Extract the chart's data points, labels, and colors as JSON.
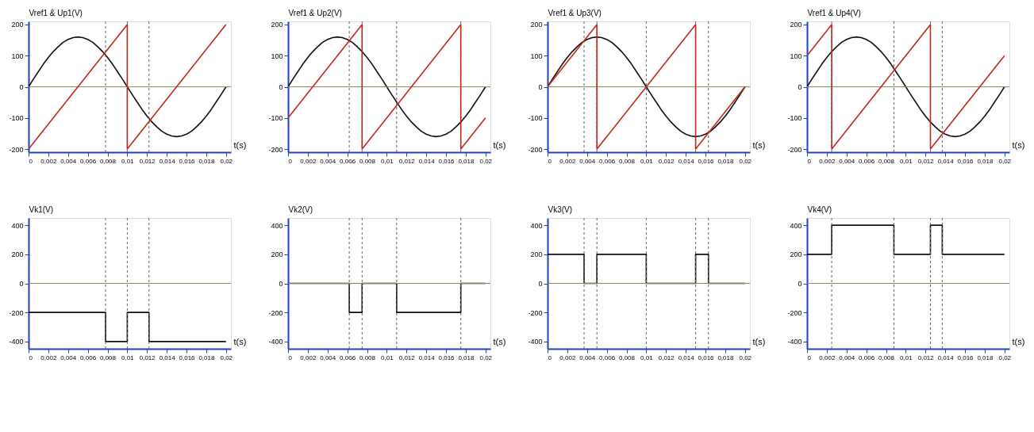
{
  "chart_data": [
    {
      "type": "line",
      "ylabel": "Vref1 & Up1(V)",
      "xlabel": "t(s)",
      "xlim": [
        0,
        0.0205
      ],
      "ylim": [
        -210,
        210
      ],
      "xticks": [
        0,
        {
          "value": 0.002,
          "label": "0,002"
        },
        {
          "value": 0.004,
          "label": "0,004"
        },
        {
          "value": 0.006,
          "label": "0,006"
        },
        {
          "value": 0.008,
          "label": "0,008"
        },
        {
          "value": 0.01,
          "label": "0,01"
        },
        {
          "value": 0.012,
          "label": "0,012"
        },
        {
          "value": 0.014,
          "label": "0,014"
        },
        {
          "value": 0.016,
          "label": "0,016"
        },
        {
          "value": 0.018,
          "label": "0,018"
        },
        {
          "value": 0.02,
          "label": "0,02"
        }
      ],
      "yticks": [
        -200,
        -100,
        0,
        100,
        200
      ],
      "grid": false,
      "x": [
        0,
        0.0005,
        0.001,
        0.0015,
        0.002,
        0.0025,
        0.003,
        0.0035,
        0.004,
        0.0045,
        0.005,
        0.0055,
        0.006,
        0.0065,
        0.007,
        0.0075,
        0.008,
        0.0085,
        0.009,
        0.0095,
        0.01,
        0.0105,
        0.011,
        0.0115,
        0.012,
        0.0125,
        0.013,
        0.0135,
        0.014,
        0.0145,
        0.015,
        0.0155,
        0.016,
        0.0165,
        0.017,
        0.0175,
        0.018,
        0.0185,
        0.019,
        0.0195,
        0.02
      ],
      "series": [
        {
          "color": "#101010",
          "values": [
            0,
            25,
            49,
            73,
            94,
            113,
            129,
            143,
            152,
            158,
            160,
            158,
            152,
            143,
            129,
            113,
            94,
            73,
            49,
            25,
            0,
            -25,
            -49,
            -73,
            -94,
            -113,
            -129,
            -143,
            -152,
            -158,
            -160,
            -158,
            -152,
            -143,
            -129,
            -113,
            -94,
            -73,
            -49,
            -25,
            0
          ]
        },
        {
          "color": "#c0281e",
          "x": [
            0,
            0.01,
            0.01,
            0.02
          ],
          "values": [
            -200,
            200,
            -200,
            200
          ]
        }
      ],
      "ref_lines": [
        {
          "axis": "y",
          "value": 0,
          "color": "#8c8c50",
          "line_style": "solid"
        },
        {
          "axis": "x",
          "value": 0.0078,
          "color": "#606060",
          "line_style": "dashed"
        },
        {
          "axis": "x",
          "value": 0.01,
          "color": "#606060",
          "line_style": "dashed"
        },
        {
          "axis": "x",
          "value": 0.0122,
          "color": "#606060",
          "line_style": "dashed"
        }
      ]
    },
    {
      "type": "line",
      "ylabel": "Vref1 & Up2(V)",
      "xlabel": "t(s)",
      "xlim": [
        0,
        0.0205
      ],
      "ylim": [
        -210,
        210
      ],
      "xticks": [
        0,
        {
          "value": 0.002,
          "label": "0,002"
        },
        {
          "value": 0.004,
          "label": "0,004"
        },
        {
          "value": 0.006,
          "label": "0,006"
        },
        {
          "value": 0.008,
          "label": "0,008"
        },
        {
          "value": 0.01,
          "label": "0,01"
        },
        {
          "value": 0.012,
          "label": "0,012"
        },
        {
          "value": 0.014,
          "label": "0,014"
        },
        {
          "value": 0.016,
          "label": "0,016"
        },
        {
          "value": 0.018,
          "label": "0,018"
        },
        {
          "value": 0.02,
          "label": "0,02"
        }
      ],
      "yticks": [
        -200,
        -100,
        0,
        100,
        200
      ],
      "grid": false,
      "x": [
        0,
        0.0005,
        0.001,
        0.0015,
        0.002,
        0.0025,
        0.003,
        0.0035,
        0.004,
        0.0045,
        0.005,
        0.0055,
        0.006,
        0.0065,
        0.007,
        0.0075,
        0.008,
        0.0085,
        0.009,
        0.0095,
        0.01,
        0.0105,
        0.011,
        0.0115,
        0.012,
        0.0125,
        0.013,
        0.0135,
        0.014,
        0.0145,
        0.015,
        0.0155,
        0.016,
        0.0165,
        0.017,
        0.0175,
        0.018,
        0.0185,
        0.019,
        0.0195,
        0.02
      ],
      "series": [
        {
          "color": "#101010",
          "values": [
            0,
            25,
            49,
            73,
            94,
            113,
            129,
            143,
            152,
            158,
            160,
            158,
            152,
            143,
            129,
            113,
            94,
            73,
            49,
            25,
            0,
            -25,
            -49,
            -73,
            -94,
            -113,
            -129,
            -143,
            -152,
            -158,
            -160,
            -158,
            -152,
            -143,
            -129,
            -113,
            -94,
            -73,
            -49,
            -25,
            0
          ]
        },
        {
          "color": "#c0281e",
          "x": [
            0,
            0.0075,
            0.0075,
            0.0175,
            0.0175,
            0.02
          ],
          "values": [
            -100,
            200,
            -200,
            200,
            -200,
            -100
          ]
        }
      ],
      "ref_lines": [
        {
          "axis": "y",
          "value": 0,
          "color": "#8c8c50",
          "line_style": "solid"
        },
        {
          "axis": "x",
          "value": 0.0062,
          "color": "#606060",
          "line_style": "dashed"
        },
        {
          "axis": "x",
          "value": 0.0075,
          "color": "#606060",
          "line_style": "dashed"
        },
        {
          "axis": "x",
          "value": 0.011,
          "color": "#606060",
          "line_style": "dashed"
        },
        {
          "axis": "x",
          "value": 0.0175,
          "color": "#606060",
          "line_style": "dashed"
        }
      ]
    },
    {
      "type": "line",
      "ylabel": "Vref1 & Up3(V)",
      "xlabel": "t(s)",
      "xlim": [
        0,
        0.0205
      ],
      "ylim": [
        -210,
        210
      ],
      "xticks": [
        0,
        {
          "value": 0.002,
          "label": "0,002"
        },
        {
          "value": 0.004,
          "label": "0,004"
        },
        {
          "value": 0.006,
          "label": "0,006"
        },
        {
          "value": 0.008,
          "label": "0,008"
        },
        {
          "value": 0.01,
          "label": "0,01"
        },
        {
          "value": 0.012,
          "label": "0,012"
        },
        {
          "value": 0.014,
          "label": "0,014"
        },
        {
          "value": 0.016,
          "label": "0,016"
        },
        {
          "value": 0.018,
          "label": "0,018"
        },
        {
          "value": 0.02,
          "label": "0,02"
        }
      ],
      "yticks": [
        -200,
        -100,
        0,
        100,
        200
      ],
      "grid": false,
      "x": [
        0,
        0.0005,
        0.001,
        0.0015,
        0.002,
        0.0025,
        0.003,
        0.0035,
        0.004,
        0.0045,
        0.005,
        0.0055,
        0.006,
        0.0065,
        0.007,
        0.0075,
        0.008,
        0.0085,
        0.009,
        0.0095,
        0.01,
        0.0105,
        0.011,
        0.0115,
        0.012,
        0.0125,
        0.013,
        0.0135,
        0.014,
        0.0145,
        0.015,
        0.0155,
        0.016,
        0.0165,
        0.017,
        0.0175,
        0.018,
        0.0185,
        0.019,
        0.0195,
        0.02
      ],
      "series": [
        {
          "color": "#101010",
          "values": [
            0,
            25,
            49,
            73,
            94,
            113,
            129,
            143,
            152,
            158,
            160,
            158,
            152,
            143,
            129,
            113,
            94,
            73,
            49,
            25,
            0,
            -25,
            -49,
            -73,
            -94,
            -113,
            -129,
            -143,
            -152,
            -158,
            -160,
            -158,
            -152,
            -143,
            -129,
            -113,
            -94,
            -73,
            -49,
            -25,
            0
          ]
        },
        {
          "color": "#c0281e",
          "x": [
            0,
            0.005,
            0.005,
            0.015,
            0.015,
            0.02
          ],
          "values": [
            0,
            200,
            -200,
            200,
            -200,
            0
          ]
        }
      ],
      "ref_lines": [
        {
          "axis": "y",
          "value": 0,
          "color": "#8c8c50",
          "line_style": "solid"
        },
        {
          "axis": "x",
          "value": 0.0037,
          "color": "#606060",
          "line_style": "dashed"
        },
        {
          "axis": "x",
          "value": 0.005,
          "color": "#606060",
          "line_style": "dashed"
        },
        {
          "axis": "x",
          "value": 0.01,
          "color": "#606060",
          "line_style": "dashed"
        },
        {
          "axis": "x",
          "value": 0.015,
          "color": "#606060",
          "line_style": "dashed"
        },
        {
          "axis": "x",
          "value": 0.0163,
          "color": "#606060",
          "line_style": "dashed"
        }
      ]
    },
    {
      "type": "line",
      "ylabel": "Vref1 & Up4(V)",
      "xlabel": "t(s)",
      "xlim": [
        0,
        0.0205
      ],
      "ylim": [
        -210,
        210
      ],
      "xticks": [
        0,
        {
          "value": 0.002,
          "label": "0,002"
        },
        {
          "value": 0.004,
          "label": "0,004"
        },
        {
          "value": 0.006,
          "label": "0,006"
        },
        {
          "value": 0.008,
          "label": "0,008"
        },
        {
          "value": 0.01,
          "label": "0,01"
        },
        {
          "value": 0.012,
          "label": "0,012"
        },
        {
          "value": 0.014,
          "label": "0,014"
        },
        {
          "value": 0.016,
          "label": "0,016"
        },
        {
          "value": 0.018,
          "label": "0,018"
        },
        {
          "value": 0.02,
          "label": "0,02"
        }
      ],
      "yticks": [
        -200,
        -100,
        0,
        100,
        200
      ],
      "grid": false,
      "x": [
        0,
        0.0005,
        0.001,
        0.0015,
        0.002,
        0.0025,
        0.003,
        0.0035,
        0.004,
        0.0045,
        0.005,
        0.0055,
        0.006,
        0.0065,
        0.007,
        0.0075,
        0.008,
        0.0085,
        0.009,
        0.0095,
        0.01,
        0.0105,
        0.011,
        0.0115,
        0.012,
        0.0125,
        0.013,
        0.0135,
        0.014,
        0.0145,
        0.015,
        0.0155,
        0.016,
        0.0165,
        0.017,
        0.0175,
        0.018,
        0.0185,
        0.019,
        0.0195,
        0.02
      ],
      "series": [
        {
          "color": "#101010",
          "values": [
            0,
            25,
            49,
            73,
            94,
            113,
            129,
            143,
            152,
            158,
            160,
            158,
            152,
            143,
            129,
            113,
            94,
            73,
            49,
            25,
            0,
            -25,
            -49,
            -73,
            -94,
            -113,
            -129,
            -143,
            -152,
            -158,
            -160,
            -158,
            -152,
            -143,
            -129,
            -113,
            -94,
            -73,
            -49,
            -25,
            0
          ]
        },
        {
          "color": "#c0281e",
          "x": [
            0,
            0.0025,
            0.0025,
            0.0125,
            0.0125,
            0.02
          ],
          "values": [
            100,
            200,
            -200,
            200,
            -200,
            100
          ]
        }
      ],
      "ref_lines": [
        {
          "axis": "y",
          "value": 0,
          "color": "#8c8c50",
          "line_style": "solid"
        },
        {
          "axis": "x",
          "value": 0.0025,
          "color": "#606060",
          "line_style": "dashed"
        },
        {
          "axis": "x",
          "value": 0.0088,
          "color": "#606060",
          "line_style": "dashed"
        },
        {
          "axis": "x",
          "value": 0.0125,
          "color": "#606060",
          "line_style": "dashed"
        },
        {
          "axis": "x",
          "value": 0.0137,
          "color": "#606060",
          "line_style": "dashed"
        }
      ]
    },
    {
      "type": "step",
      "ylabel": "Vk1(V)",
      "xlabel": "t(s)",
      "xlim": [
        0,
        0.0205
      ],
      "ylim": [
        -450,
        450
      ],
      "xticks": [
        0,
        {
          "value": 0.002,
          "label": "0,002"
        },
        {
          "value": 0.004,
          "label": "0,004"
        },
        {
          "value": 0.006,
          "label": "0,006"
        },
        {
          "value": 0.008,
          "label": "0,008"
        },
        {
          "value": 0.01,
          "label": "0,01"
        },
        {
          "value": 0.012,
          "label": "0,012"
        },
        {
          "value": 0.014,
          "label": "0,014"
        },
        {
          "value": 0.016,
          "label": "0,016"
        },
        {
          "value": 0.018,
          "label": "0,018"
        },
        {
          "value": 0.02,
          "label": "0,02"
        }
      ],
      "yticks": [
        -400,
        -200,
        0,
        200,
        400
      ],
      "grid": false,
      "x": [
        0,
        0.0078,
        0.01,
        0.0122,
        0.02
      ],
      "series": [
        {
          "color": "#101010",
          "values": [
            -200,
            -400,
            -200,
            -400,
            -400
          ]
        }
      ],
      "ref_lines": [
        {
          "axis": "y",
          "value": 0,
          "color": "#8c8c50",
          "line_style": "solid"
        },
        {
          "axis": "x",
          "value": 0.0078,
          "color": "#606060",
          "line_style": "dashed"
        },
        {
          "axis": "x",
          "value": 0.01,
          "color": "#606060",
          "line_style": "dashed"
        },
        {
          "axis": "x",
          "value": 0.0122,
          "color": "#606060",
          "line_style": "dashed"
        }
      ]
    },
    {
      "type": "step",
      "ylabel": "Vk2(V)",
      "xlabel": "t(s)",
      "xlim": [
        0,
        0.0205
      ],
      "ylim": [
        -450,
        450
      ],
      "xticks": [
        0,
        {
          "value": 0.002,
          "label": "0,002"
        },
        {
          "value": 0.004,
          "label": "0,004"
        },
        {
          "value": 0.006,
          "label": "0,006"
        },
        {
          "value": 0.008,
          "label": "0,008"
        },
        {
          "value": 0.01,
          "label": "0,01"
        },
        {
          "value": 0.012,
          "label": "0,012"
        },
        {
          "value": 0.014,
          "label": "0,014"
        },
        {
          "value": 0.016,
          "label": "0,016"
        },
        {
          "value": 0.018,
          "label": "0,018"
        },
        {
          "value": 0.02,
          "label": "0,02"
        }
      ],
      "yticks": [
        -400,
        -200,
        0,
        200,
        400
      ],
      "grid": false,
      "x": [
        0,
        0.0062,
        0.0075,
        0.011,
        0.0175,
        0.02
      ],
      "series": [
        {
          "color": "#101010",
          "values": [
            0,
            -200,
            0,
            -200,
            0,
            0
          ]
        }
      ],
      "ref_lines": [
        {
          "axis": "y",
          "value": 0,
          "color": "#8c8c50",
          "line_style": "solid"
        },
        {
          "axis": "x",
          "value": 0.0062,
          "color": "#606060",
          "line_style": "dashed"
        },
        {
          "axis": "x",
          "value": 0.0075,
          "color": "#606060",
          "line_style": "dashed"
        },
        {
          "axis": "x",
          "value": 0.011,
          "color": "#606060",
          "line_style": "dashed"
        },
        {
          "axis": "x",
          "value": 0.0175,
          "color": "#606060",
          "line_style": "dashed"
        }
      ]
    },
    {
      "type": "step",
      "ylabel": "Vk3(V)",
      "xlabel": "t(s)",
      "xlim": [
        0,
        0.0205
      ],
      "ylim": [
        -450,
        450
      ],
      "xticks": [
        0,
        {
          "value": 0.002,
          "label": "0,002"
        },
        {
          "value": 0.004,
          "label": "0,004"
        },
        {
          "value": 0.006,
          "label": "0,006"
        },
        {
          "value": 0.008,
          "label": "0,008"
        },
        {
          "value": 0.01,
          "label": "0,01"
        },
        {
          "value": 0.012,
          "label": "0,012"
        },
        {
          "value": 0.014,
          "label": "0,014"
        },
        {
          "value": 0.016,
          "label": "0,016"
        },
        {
          "value": 0.018,
          "label": "0,018"
        },
        {
          "value": 0.02,
          "label": "0,02"
        }
      ],
      "yticks": [
        -400,
        -200,
        0,
        200,
        400
      ],
      "grid": false,
      "x": [
        0,
        0.0037,
        0.005,
        0.01,
        0.015,
        0.0163,
        0.02
      ],
      "series": [
        {
          "color": "#101010",
          "values": [
            200,
            0,
            200,
            0,
            200,
            0,
            0
          ]
        }
      ],
      "ref_lines": [
        {
          "axis": "y",
          "value": 0,
          "color": "#8c8c50",
          "line_style": "solid"
        },
        {
          "axis": "x",
          "value": 0.0037,
          "color": "#606060",
          "line_style": "dashed"
        },
        {
          "axis": "x",
          "value": 0.005,
          "color": "#606060",
          "line_style": "dashed"
        },
        {
          "axis": "x",
          "value": 0.01,
          "color": "#606060",
          "line_style": "dashed"
        },
        {
          "axis": "x",
          "value": 0.015,
          "color": "#606060",
          "line_style": "dashed"
        },
        {
          "axis": "x",
          "value": 0.0163,
          "color": "#606060",
          "line_style": "dashed"
        }
      ]
    },
    {
      "type": "step",
      "ylabel": "Vk4(V)",
      "xlabel": "t(s)",
      "xlim": [
        0,
        0.0205
      ],
      "ylim": [
        -450,
        450
      ],
      "xticks": [
        0,
        {
          "value": 0.002,
          "label": "0,002"
        },
        {
          "value": 0.004,
          "label": "0,004"
        },
        {
          "value": 0.006,
          "label": "0,006"
        },
        {
          "value": 0.008,
          "label": "0,008"
        },
        {
          "value": 0.01,
          "label": "0,01"
        },
        {
          "value": 0.012,
          "label": "0,012"
        },
        {
          "value": 0.014,
          "label": "0,014"
        },
        {
          "value": 0.016,
          "label": "0,016"
        },
        {
          "value": 0.018,
          "label": "0,018"
        },
        {
          "value": 0.02,
          "label": "0,02"
        }
      ],
      "yticks": [
        -400,
        -200,
        0,
        200,
        400
      ],
      "grid": false,
      "x": [
        0,
        0.0025,
        0.0088,
        0.0125,
        0.0137,
        0.02
      ],
      "series": [
        {
          "color": "#101010",
          "values": [
            200,
            400,
            200,
            400,
            200,
            200
          ]
        }
      ],
      "ref_lines": [
        {
          "axis": "y",
          "value": 0,
          "color": "#8c8c50",
          "line_style": "solid"
        },
        {
          "axis": "x",
          "value": 0.0025,
          "color": "#606060",
          "line_style": "dashed"
        },
        {
          "axis": "x",
          "value": 0.0088,
          "color": "#606060",
          "line_style": "dashed"
        },
        {
          "axis": "x",
          "value": 0.0125,
          "color": "#606060",
          "line_style": "dashed"
        },
        {
          "axis": "x",
          "value": 0.0137,
          "color": "#606060",
          "line_style": "dashed"
        }
      ]
    }
  ]
}
